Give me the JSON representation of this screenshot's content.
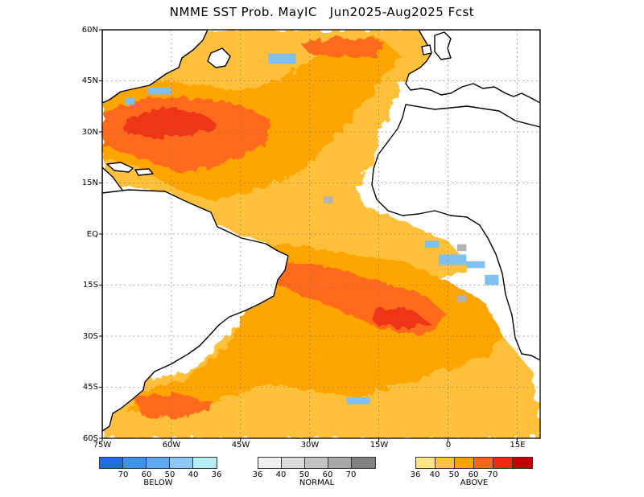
{
  "title": "NMME SST Prob. MayIC   Jun2025-Aug2025 Fcst",
  "map": {
    "region": "Atlantic Ocean",
    "lat_labels": [
      "60N",
      "45N",
      "30N",
      "15N",
      "EQ",
      "15S",
      "30S",
      "45S",
      "60S"
    ],
    "lon_labels": [
      "75W",
      "60W",
      "45W",
      "30W",
      "15W",
      "0",
      "15E"
    ],
    "lat_range": [
      -60,
      60
    ],
    "lon_range": [
      -75,
      20
    ],
    "grid": "dotted",
    "colors": {
      "land_outline": "#000000",
      "ocean_no_signal": "#ffffff",
      "above_36": "#ffe27a",
      "above_40": "#ffc13a",
      "above_50": "#ffa500",
      "above_60": "#ff6a1a",
      "above_70": "#ee3412",
      "above_high": "#c40000",
      "below_40": "#7fc0ee",
      "normal_60": "#b4b4b4"
    }
  },
  "legend": {
    "below": {
      "label": "BELOW",
      "ticks": [
        "70",
        "60",
        "50",
        "40",
        "36"
      ],
      "colors": [
        "#1e6ee6",
        "#3c93ee",
        "#5ea8f4",
        "#8ec8f8",
        "#b8ecf4"
      ]
    },
    "normal": {
      "label": "NORMAL",
      "ticks": [
        "36",
        "40",
        "50",
        "60",
        "70"
      ],
      "colors": [
        "#f0f0f0",
        "#dadada",
        "#c4c4c4",
        "#a8a8a8",
        "#808080"
      ]
    },
    "above": {
      "label": "ABOVE",
      "ticks": [
        "36",
        "40",
        "50",
        "60",
        "70"
      ],
      "colors": [
        "#ffe480",
        "#ffc43c",
        "#ffa000",
        "#ff6418",
        "#ee2c10",
        "#c00000"
      ]
    }
  }
}
